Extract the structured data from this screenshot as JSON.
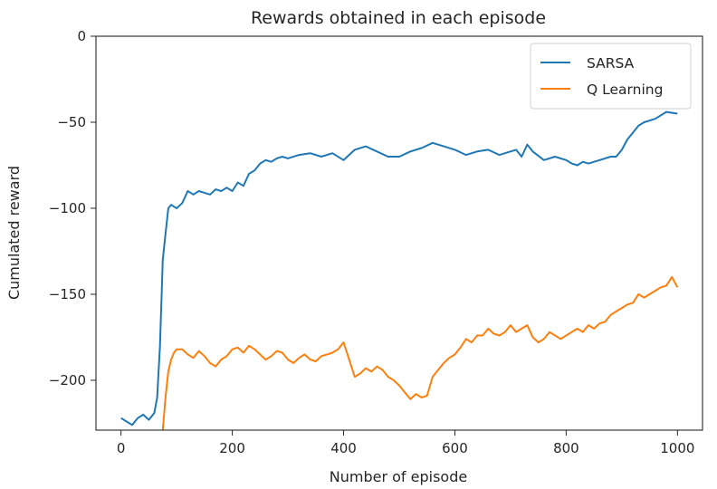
{
  "chart_data": {
    "type": "line",
    "title": "Rewards obtained in each episode",
    "xlabel": "Number of episode",
    "ylabel": "Cumulated reward",
    "xlim": [
      -45,
      1045
    ],
    "ylim": [
      -229,
      0
    ],
    "xticks": [
      0,
      200,
      400,
      600,
      800,
      1000
    ],
    "yticks": [
      0,
      -50,
      -100,
      -150,
      -200
    ],
    "xtick_labels": [
      "0",
      "200",
      "400",
      "600",
      "800",
      "1000"
    ],
    "ytick_labels": [
      "0",
      "−50",
      "−100",
      "−150",
      "−200"
    ],
    "grid": false,
    "legend_position": "top-right",
    "series": [
      {
        "name": "SARSA",
        "color": "#1f77b4",
        "x": [
          0,
          10,
          20,
          30,
          40,
          50,
          60,
          65,
          70,
          75,
          80,
          85,
          90,
          100,
          110,
          120,
          130,
          140,
          150,
          160,
          170,
          180,
          190,
          200,
          210,
          220,
          230,
          240,
          250,
          260,
          270,
          280,
          290,
          300,
          320,
          340,
          360,
          380,
          400,
          420,
          440,
          460,
          480,
          500,
          520,
          540,
          560,
          580,
          600,
          620,
          640,
          660,
          680,
          700,
          710,
          720,
          730,
          740,
          760,
          780,
          800,
          810,
          820,
          830,
          840,
          860,
          880,
          890,
          900,
          910,
          920,
          930,
          940,
          960,
          980,
          1000
        ],
        "y": [
          -222,
          -224,
          -226,
          -222,
          -220,
          -223,
          -219,
          -210,
          -180,
          -130,
          -115,
          -100,
          -98,
          -100,
          -97,
          -90,
          -92,
          -90,
          -91,
          -92,
          -89,
          -90,
          -88,
          -90,
          -85,
          -87,
          -80,
          -78,
          -74,
          -72,
          -73,
          -71,
          -70,
          -71,
          -69,
          -68,
          -70,
          -68,
          -72,
          -66,
          -64,
          -67,
          -70,
          -70,
          -67,
          -65,
          -62,
          -64,
          -66,
          -69,
          -67,
          -66,
          -69,
          -67,
          -66,
          -70,
          -63,
          -67,
          -72,
          -70,
          -72,
          -74,
          -75,
          -73,
          -74,
          -72,
          -70,
          -70,
          -66,
          -60,
          -56,
          -52,
          -50,
          -48,
          -44,
          -45
        ]
      },
      {
        "name": "Q Learning",
        "color": "#ff7f0e",
        "x": [
          75,
          80,
          85,
          90,
          95,
          100,
          110,
          120,
          130,
          140,
          150,
          160,
          170,
          180,
          190,
          200,
          210,
          220,
          230,
          240,
          250,
          260,
          270,
          280,
          290,
          300,
          310,
          320,
          330,
          340,
          350,
          360,
          370,
          380,
          390,
          400,
          410,
          420,
          430,
          440,
          450,
          460,
          470,
          480,
          490,
          500,
          510,
          520,
          530,
          540,
          550,
          560,
          570,
          580,
          590,
          600,
          610,
          620,
          630,
          640,
          650,
          660,
          670,
          680,
          690,
          700,
          710,
          720,
          730,
          740,
          750,
          760,
          770,
          780,
          790,
          800,
          810,
          820,
          830,
          840,
          850,
          860,
          870,
          880,
          890,
          900,
          910,
          920,
          930,
          940,
          950,
          960,
          970,
          980,
          990,
          1000
        ],
        "y": [
          -229,
          -210,
          -195,
          -188,
          -184,
          -182,
          -182,
          -185,
          -187,
          -183,
          -186,
          -190,
          -192,
          -188,
          -186,
          -182,
          -181,
          -184,
          -180,
          -182,
          -185,
          -188,
          -186,
          -183,
          -184,
          -188,
          -190,
          -187,
          -185,
          -188,
          -189,
          -186,
          -185,
          -184,
          -182,
          -178,
          -188,
          -198,
          -196,
          -193,
          -195,
          -192,
          -194,
          -198,
          -200,
          -203,
          -207,
          -211,
          -208,
          -210,
          -209,
          -198,
          -194,
          -190,
          -187,
          -185,
          -181,
          -176,
          -178,
          -174,
          -174,
          -170,
          -173,
          -174,
          -172,
          -168,
          -172,
          -170,
          -168,
          -175,
          -178,
          -176,
          -172,
          -174,
          -176,
          -174,
          -172,
          -170,
          -172,
          -168,
          -170,
          -167,
          -166,
          -162,
          -160,
          -158,
          -156,
          -155,
          -150,
          -152,
          -150,
          -148,
          -146,
          -145,
          -140,
          -146
        ]
      }
    ]
  }
}
